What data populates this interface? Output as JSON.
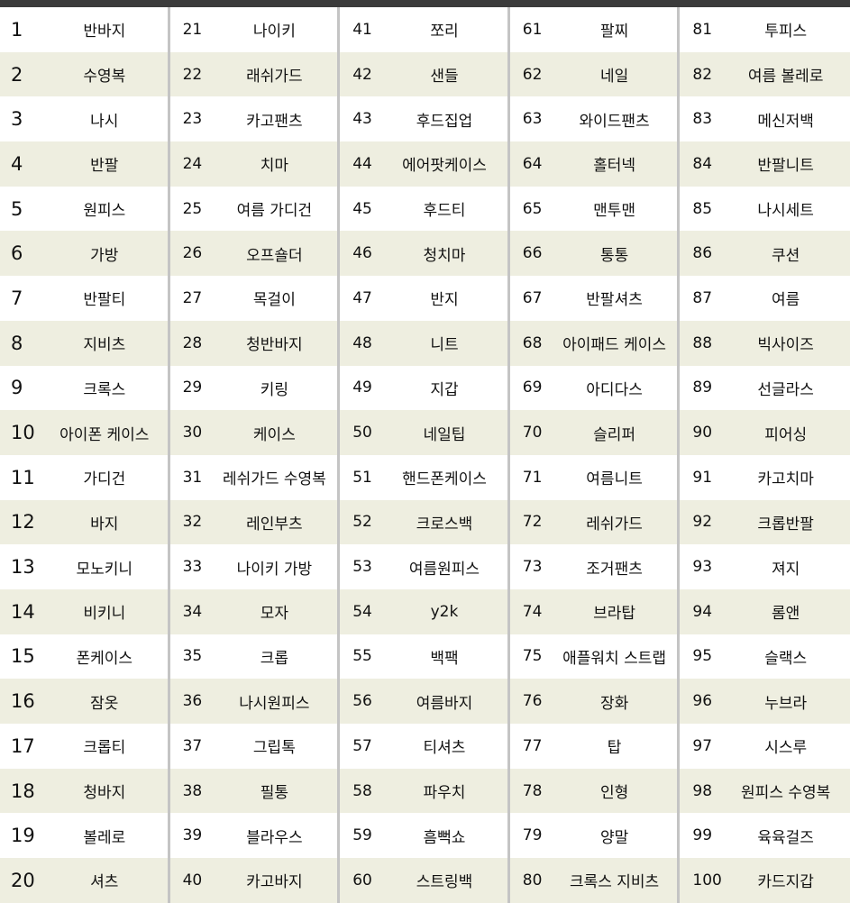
{
  "stripe_color": "#eeeee0",
  "header_bar_color": "#3b3b3b",
  "keywords": [
    "반바지",
    "수영복",
    "나시",
    "반팔",
    "원피스",
    "가방",
    "반팔티",
    "지비츠",
    "크록스",
    "아이폰 케이스",
    "가디건",
    "바지",
    "모노키니",
    "비키니",
    "폰케이스",
    "잠옷",
    "크롭티",
    "청바지",
    "볼레로",
    "셔츠",
    "나이키",
    "래쉬가드",
    "카고팬츠",
    "치마",
    "여름 가디건",
    "오프숄더",
    "목걸이",
    "청반바지",
    "키링",
    "케이스",
    "레쉬가드 수영복",
    "레인부츠",
    "나이키 가방",
    "모자",
    "크롭",
    "나시원피스",
    "그립톡",
    "필통",
    "블라우스",
    "카고바지",
    "쪼리",
    "샌들",
    "후드집업",
    "에어팟케이스",
    "후드티",
    "청치마",
    "반지",
    "니트",
    "지갑",
    "네일팁",
    "핸드폰케이스",
    "크로스백",
    "여름원피스",
    "y2k",
    "백팩",
    "여름바지",
    "티셔츠",
    "파우치",
    "흠뻑쇼",
    "스트링백",
    "팔찌",
    "네일",
    "와이드팬츠",
    "홀터넥",
    "맨투맨",
    "통통",
    "반팔셔츠",
    "아이패드 케이스",
    "아디다스",
    "슬리퍼",
    "여름니트",
    "레쉬가드",
    "조거팬츠",
    "브라탑",
    "애플워치 스트랩",
    "장화",
    "탑",
    "인형",
    "양말",
    "크록스 지비츠",
    "투피스",
    "여름 볼레로",
    "메신저백",
    "반팔니트",
    "나시세트",
    "쿠션",
    "여름",
    "빅사이즈",
    "선글라스",
    "피어싱",
    "카고치마",
    "크롭반팔",
    "져지",
    "롬앤",
    "슬랙스",
    "누브라",
    "시스루",
    "원피스 수영복",
    "육육걸즈",
    "카드지갑"
  ]
}
